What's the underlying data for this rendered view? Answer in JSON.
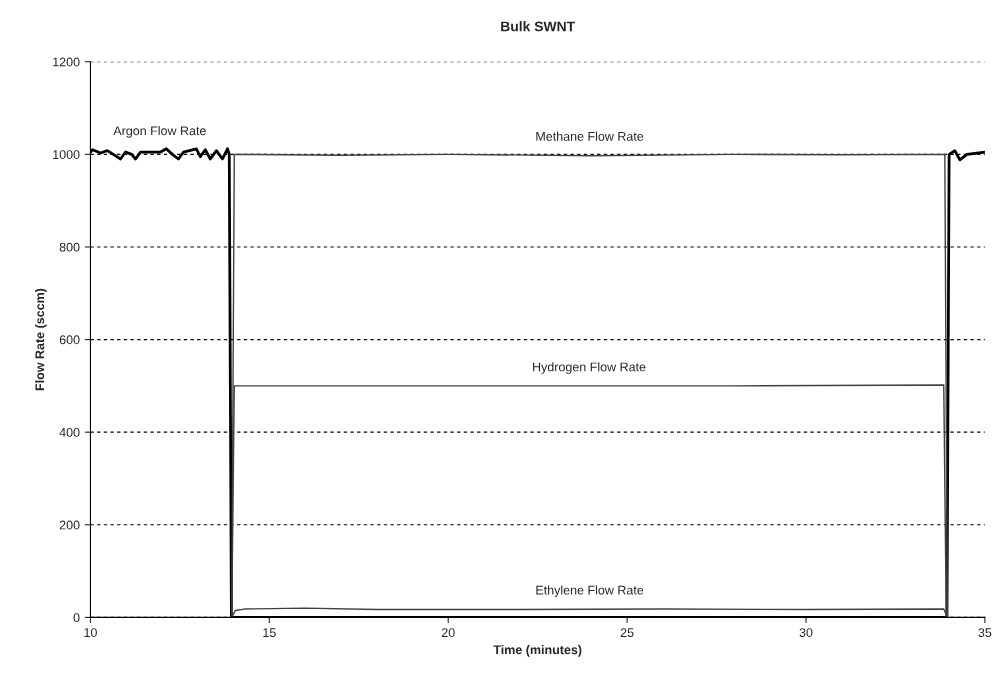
{
  "chart_data": {
    "type": "line",
    "title": "Bulk SWNT",
    "xlabel": "Time (minutes)",
    "ylabel": "Flow Rate (sccm)",
    "xlim": [
      10,
      35
    ],
    "ylim": [
      0,
      1200
    ],
    "xticks": [
      10,
      15,
      20,
      25,
      30,
      35
    ],
    "yticks": [
      0,
      200,
      400,
      600,
      800,
      1000,
      1200
    ],
    "grid": "y",
    "legend": false,
    "series": [
      {
        "name": "Argon Flow Rate",
        "color": "#000000",
        "x": [
          10.0,
          10.06,
          10.28,
          10.47,
          10.64,
          10.84,
          10.98,
          11.15,
          11.26,
          11.4,
          11.96,
          12.12,
          12.29,
          12.46,
          12.6,
          12.96,
          13.07,
          13.21,
          13.35,
          13.52,
          13.69,
          13.83,
          13.88,
          13.94,
          14.0,
          33.94,
          34.0,
          34.16,
          34.3,
          34.5,
          35.0
        ],
        "values": [
          1005,
          1010,
          1003,
          1008,
          1000,
          990,
          1005,
          1000,
          990,
          1005,
          1005,
          1012,
          1000,
          990,
          1005,
          1012,
          995,
          1010,
          990,
          1008,
          990,
          1012,
          1000,
          0,
          0,
          0,
          1000,
          1008,
          988,
          1000,
          1005
        ]
      },
      {
        "name": "Methane Flow Rate",
        "color": "#404040",
        "x": [
          13.95,
          14.02,
          17.0,
          20.0,
          24.0,
          28.0,
          31.0,
          33.88,
          33.95
        ],
        "values": [
          0,
          1000,
          998,
          1000,
          997,
          1000,
          999,
          1000,
          0
        ]
      },
      {
        "name": "Hydrogen Flow Rate",
        "color": "#404040",
        "x": [
          13.95,
          14.02,
          20.0,
          28.0,
          33.85,
          33.92
        ],
        "values": [
          0,
          500,
          500,
          500,
          502,
          0
        ]
      },
      {
        "name": "Ethylene Flow Rate",
        "color": "#404040",
        "x": [
          13.95,
          14.05,
          14.3,
          16.0,
          18.0,
          22.0,
          26.0,
          30.0,
          33.85,
          33.95
        ],
        "values": [
          0,
          15,
          18,
          20,
          17,
          17,
          18,
          17,
          18,
          0
        ]
      }
    ]
  }
}
